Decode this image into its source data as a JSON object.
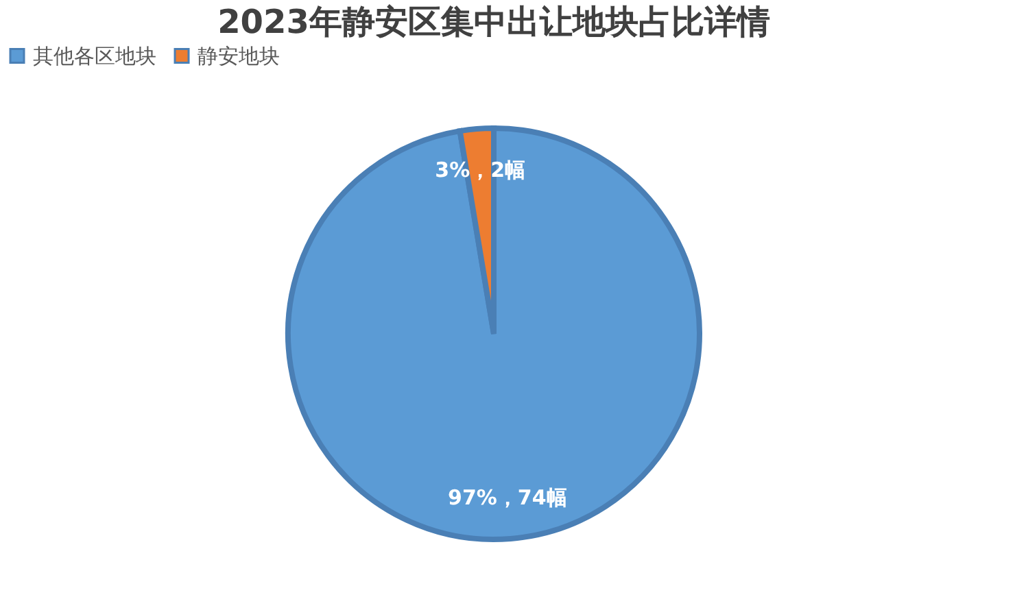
{
  "chart_data": {
    "type": "pie",
    "title": "2023年静安区集中出让地块占比详情",
    "categories": [
      "其他各区地块",
      "静安地块"
    ],
    "values": [
      74,
      2
    ],
    "colors": [
      "#5b9bd5",
      "#ed7d31"
    ],
    "value_labels": [
      "97%，74幅",
      "3%，2幅"
    ],
    "legend": "top"
  }
}
